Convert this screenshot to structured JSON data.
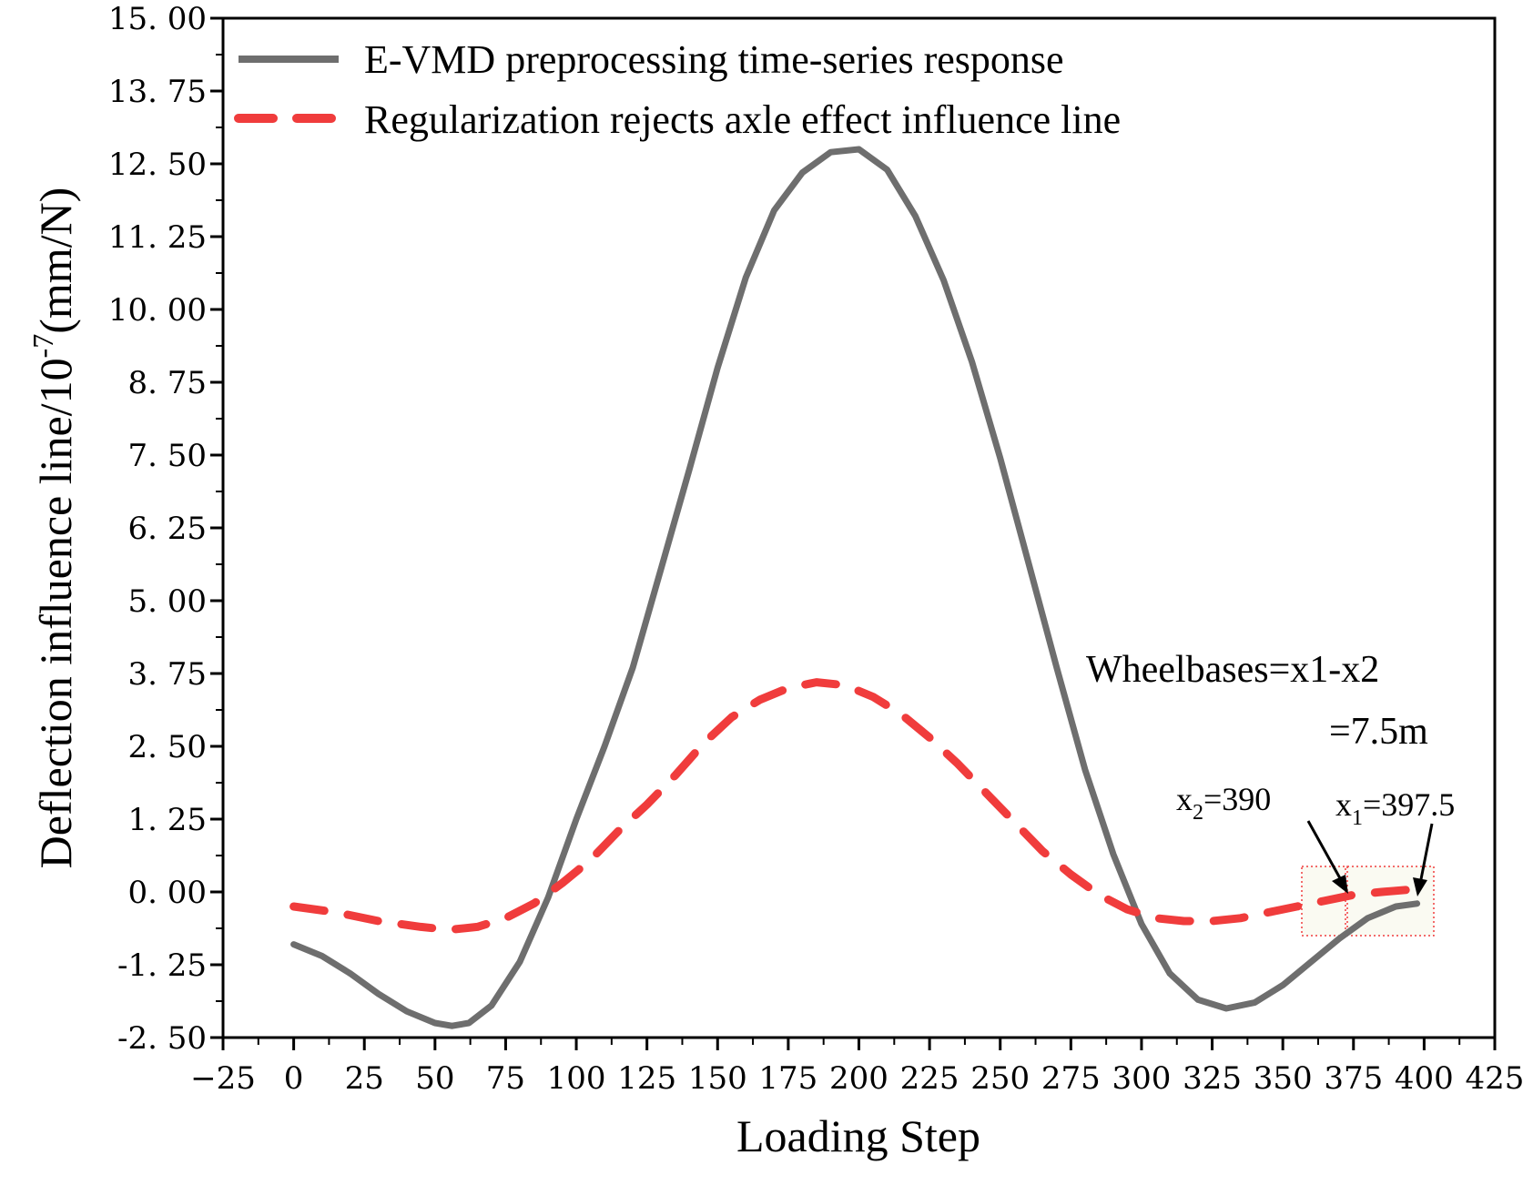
{
  "chart_data": {
    "type": "line",
    "xlabel": "Loading Step",
    "ylabel_main": "Deflection influence line/10",
    "ylabel_exp": "-7",
    "ylabel_unit": "(mm/N)",
    "xlim": [
      -25,
      425
    ],
    "ylim": [
      -2.5,
      15.0
    ],
    "xticks": [
      -25,
      0,
      25,
      50,
      75,
      100,
      125,
      150,
      175,
      200,
      225,
      250,
      275,
      300,
      325,
      350,
      375,
      400,
      425
    ],
    "yticks": [
      -2.5,
      -1.25,
      0,
      1.25,
      2.5,
      3.75,
      5.0,
      6.25,
      7.5,
      8.75,
      10.0,
      11.25,
      12.5,
      13.75,
      15.0
    ],
    "xtick_labels": [
      "−25",
      "0",
      "25",
      "50",
      "75",
      "100",
      "125",
      "150",
      "175",
      "200",
      "225",
      "250",
      "275",
      "300",
      "325",
      "350",
      "375",
      "400",
      "425"
    ],
    "ytick_labels": [
      "-2. 50",
      "-1. 25",
      "0. 00",
      "1. 25",
      "2. 50",
      "3. 75",
      "5. 00",
      "6. 25",
      "7. 50",
      "8. 75",
      "10. 00",
      "11. 25",
      "12. 50",
      "13. 75",
      "15. 00"
    ],
    "series": [
      {
        "name": "E-VMD preprocessing time-series response",
        "color": "#6e6e6e",
        "style": "solid",
        "x": [
          0,
          10,
          20,
          30,
          40,
          50,
          56,
          62,
          70,
          80,
          90,
          100,
          110,
          120,
          130,
          140,
          150,
          160,
          170,
          180,
          190,
          200,
          210,
          220,
          230,
          240,
          250,
          260,
          270,
          280,
          290,
          300,
          310,
          320,
          330,
          340,
          350,
          360,
          370,
          380,
          390,
          397.5
        ],
        "y": [
          -0.9,
          -1.1,
          -1.4,
          -1.75,
          -2.05,
          -2.25,
          -2.3,
          -2.25,
          -1.95,
          -1.2,
          -0.1,
          1.25,
          2.5,
          3.85,
          5.55,
          7.25,
          9.0,
          10.55,
          11.7,
          12.35,
          12.7,
          12.75,
          12.4,
          11.6,
          10.5,
          9.1,
          7.45,
          5.65,
          3.85,
          2.1,
          0.65,
          -0.55,
          -1.4,
          -1.85,
          -2.0,
          -1.9,
          -1.6,
          -1.2,
          -0.8,
          -0.45,
          -0.25,
          -0.2
        ]
      },
      {
        "name": "Regularization rejects axle effect influence line",
        "color": "#f03c3c",
        "style": "dashed",
        "x": [
          0,
          15,
          30,
          45,
          55,
          65,
          75,
          85,
          95,
          105,
          115,
          125,
          135,
          145,
          155,
          165,
          175,
          185,
          195,
          205,
          215,
          225,
          235,
          245,
          255,
          265,
          275,
          285,
          295,
          305,
          315,
          325,
          335,
          345,
          355,
          365,
          375,
          385,
          397.5
        ],
        "y": [
          -0.25,
          -0.35,
          -0.5,
          -0.6,
          -0.65,
          -0.6,
          -0.45,
          -0.2,
          0.15,
          0.55,
          1.05,
          1.5,
          2.0,
          2.55,
          3.0,
          3.3,
          3.5,
          3.6,
          3.55,
          3.35,
          3.05,
          2.65,
          2.2,
          1.7,
          1.2,
          0.7,
          0.3,
          -0.05,
          -0.3,
          -0.45,
          -0.5,
          -0.5,
          -0.45,
          -0.35,
          -0.25,
          -0.15,
          -0.05,
          0.0,
          0.05
        ]
      }
    ],
    "annotations": {
      "wheelbase_line1": "Wheelbases=x1-x2",
      "wheelbase_line2": "=7.5m",
      "x2_base": "x",
      "x2_sub": "2",
      "x2_val": "=390",
      "x1_base": "x",
      "x1_sub": "1",
      "x1_val": "=397.5"
    }
  }
}
